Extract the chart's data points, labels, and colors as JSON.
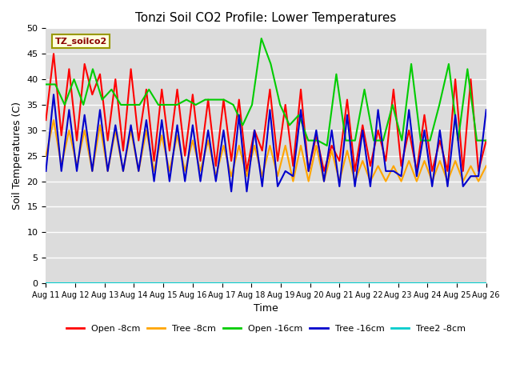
{
  "title": "Tonzi Soil CO2 Profile: Lower Temperatures",
  "xlabel": "Time",
  "ylabel": "Soil Temperatures (C)",
  "watermark": "TZ_soilco2",
  "ylim": [
    0,
    50
  ],
  "yticks": [
    0,
    5,
    10,
    15,
    20,
    25,
    30,
    35,
    40,
    45,
    50
  ],
  "x_labels": [
    "Aug 11",
    "Aug 12",
    "Aug 13",
    "Aug 14",
    "Aug 15",
    "Aug 16",
    "Aug 17",
    "Aug 18",
    "Aug 19",
    "Aug 20",
    "Aug 21",
    "Aug 22",
    "Aug 23",
    "Aug 24",
    "Aug 25",
    "Aug 26"
  ],
  "background_color": "#dcdcdc",
  "plot_bg": "#dcdcdc",
  "series": [
    {
      "key": "open_8cm",
      "color": "#ff0000",
      "label": "Open -8cm",
      "values": [
        32,
        45,
        29,
        42,
        28,
        43,
        37,
        41,
        28,
        40,
        26,
        42,
        28,
        38,
        24,
        38,
        26,
        38,
        25,
        37,
        24,
        36,
        23,
        36,
        24,
        36,
        22,
        30,
        26,
        38,
        24,
        35,
        23,
        38,
        22,
        29,
        22,
        27,
        24,
        36,
        22,
        31,
        23,
        30,
        24,
        38,
        23,
        30,
        22,
        33,
        22,
        28,
        22,
        40,
        22,
        40,
        22,
        28
      ]
    },
    {
      "key": "tree_8cm",
      "color": "#ffa500",
      "label": "Tree -8cm",
      "values": [
        25,
        32,
        23,
        30,
        23,
        30,
        22,
        31,
        22,
        30,
        22,
        30,
        22,
        30,
        22,
        29,
        22,
        29,
        22,
        28,
        22,
        28,
        21,
        27,
        21,
        27,
        21,
        27,
        21,
        27,
        21,
        27,
        20,
        27,
        20,
        27,
        20,
        26,
        20,
        26,
        20,
        24,
        20,
        23,
        20,
        23,
        20,
        24,
        20,
        24,
        20,
        24,
        20,
        24,
        20,
        23,
        20,
        23
      ]
    },
    {
      "key": "open_16cm",
      "color": "#00cc00",
      "label": "Open -16cm",
      "values": [
        39,
        39,
        35,
        40,
        35,
        42,
        36,
        38,
        35,
        35,
        35,
        38,
        35,
        35,
        35,
        36,
        35,
        36,
        36,
        36,
        35,
        31,
        35,
        48,
        43,
        35,
        31,
        33,
        28,
        28,
        27,
        41,
        28,
        28,
        38,
        28,
        28,
        35,
        28,
        43,
        28,
        28,
        35,
        43,
        28,
        42,
        28,
        28
      ]
    },
    {
      "key": "tree_16cm",
      "color": "#0000cc",
      "label": "Tree -16cm",
      "values": [
        22,
        37,
        22,
        34,
        22,
        33,
        22,
        34,
        22,
        31,
        22,
        31,
        22,
        32,
        20,
        32,
        20,
        31,
        20,
        31,
        20,
        30,
        20,
        30,
        18,
        33,
        18,
        30,
        19,
        34,
        19,
        22,
        21,
        34,
        22,
        30,
        20,
        30,
        19,
        33,
        19,
        30,
        19,
        34,
        22,
        22,
        21,
        34,
        21,
        30,
        19,
        30,
        19,
        33,
        19,
        21,
        21,
        34
      ]
    },
    {
      "key": "tree2_8cm",
      "color": "#00cccc",
      "label": "Tree2 -8cm",
      "values": [
        0,
        0,
        0,
        0,
        0,
        0,
        0,
        0,
        0,
        0,
        0,
        0,
        0,
        0,
        0,
        0,
        0,
        0,
        0,
        0,
        0,
        0,
        0,
        0,
        0,
        0,
        0,
        0,
        0,
        0,
        0,
        0,
        0,
        0,
        0,
        0,
        0,
        0,
        0,
        0,
        0,
        0,
        0,
        0,
        0,
        0,
        0,
        0,
        0,
        0,
        0,
        0,
        0,
        0,
        0,
        0,
        0,
        0,
        0,
        0
      ]
    }
  ]
}
